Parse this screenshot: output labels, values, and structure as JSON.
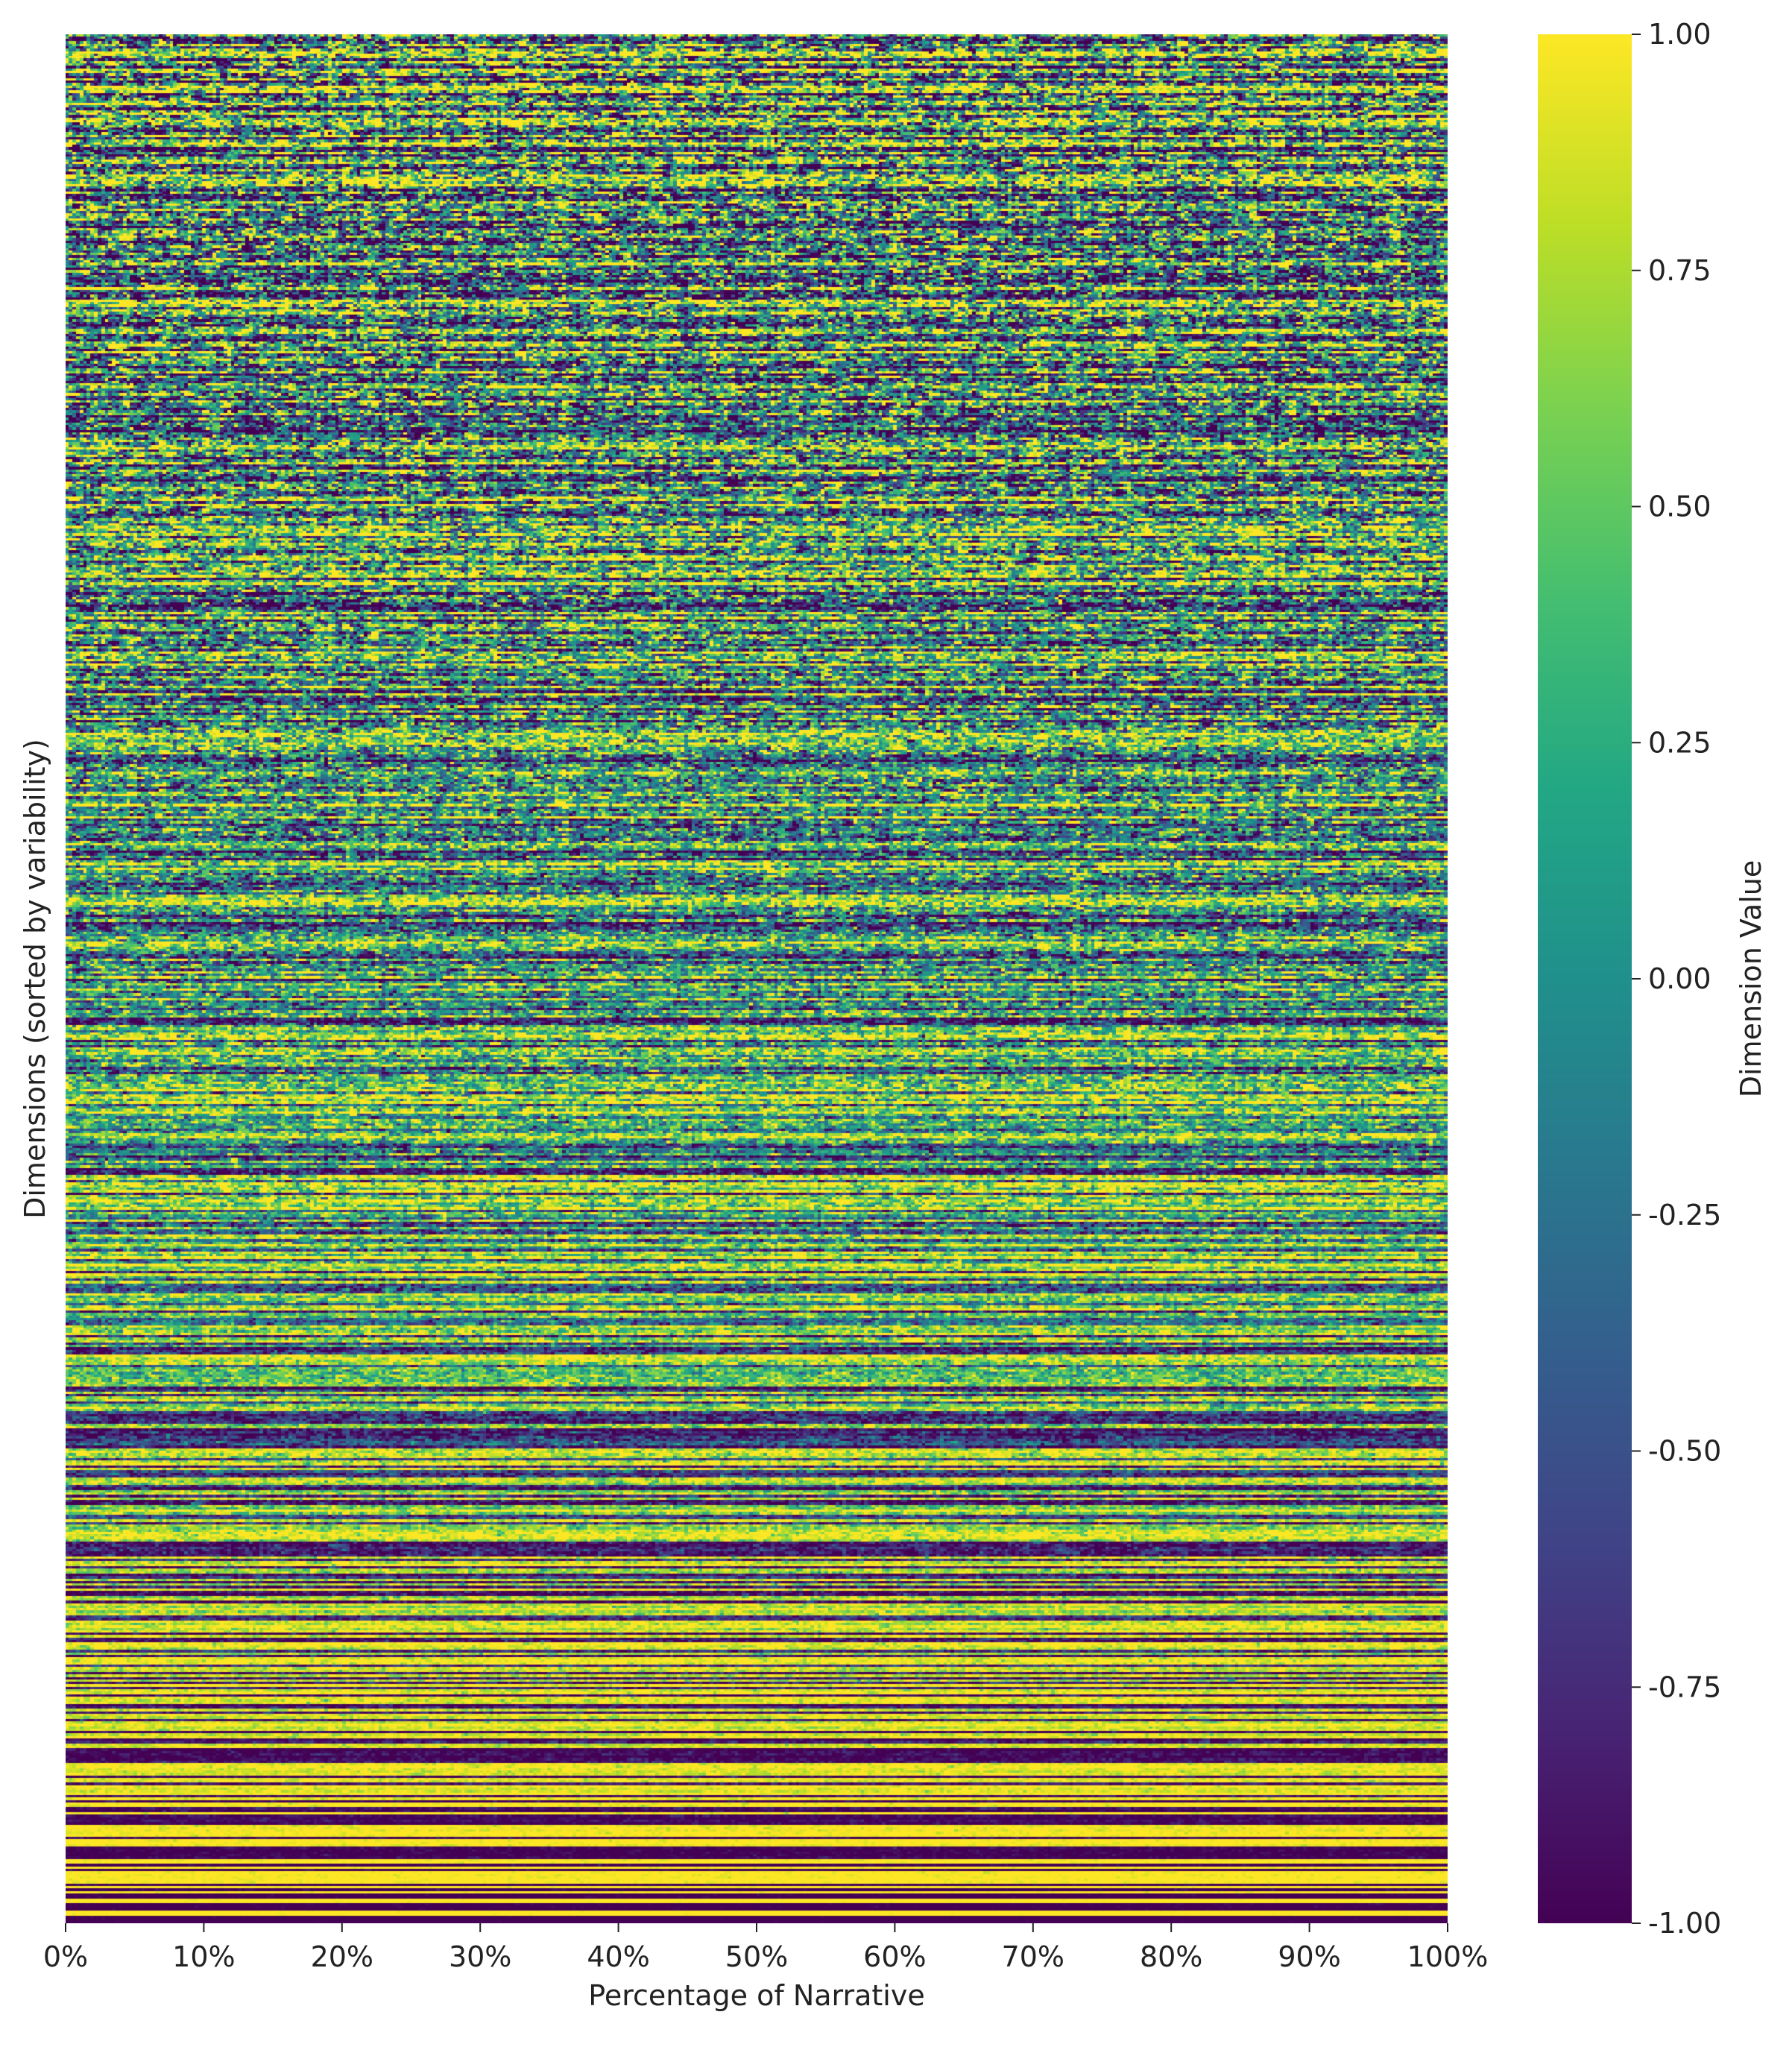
{
  "chart_data": {
    "type": "heatmap",
    "title": "",
    "xlabel": "Percentage of Narrative",
    "ylabel": "Dimensions (sorted by variability)",
    "x_ticks": [
      "0%",
      "10%",
      "20%",
      "30%",
      "40%",
      "50%",
      "60%",
      "70%",
      "80%",
      "90%",
      "100%"
    ],
    "x_range": [
      0,
      100
    ],
    "colorbar": {
      "label": "Dimension Value",
      "colormap": "viridis",
      "range": [
        -1.0,
        1.0
      ],
      "ticks": [
        "1.00",
        "0.75",
        "0.50",
        "0.25",
        "0.00",
        "-0.25",
        "-0.50",
        "-0.75",
        "-1.00"
      ]
    },
    "grid": false,
    "description_of_values": {
      "rows": "embedding dimensions ordered from most variable (top) to least variable (bottom)",
      "top_region": "mixed values across the full range, mostly green/teal with frequent purple and yellow cells",
      "middle_region": "increasingly saturated horizontal stripes alternating near 1.00 and -1.00",
      "bottom_region": "nearly constant rows at either 1.00 (yellow) or -1.00 (dark purple)"
    }
  },
  "colors": {
    "viridis_low": "#440154",
    "viridis_mid": "#21918c",
    "viridis_high": "#fde725"
  }
}
